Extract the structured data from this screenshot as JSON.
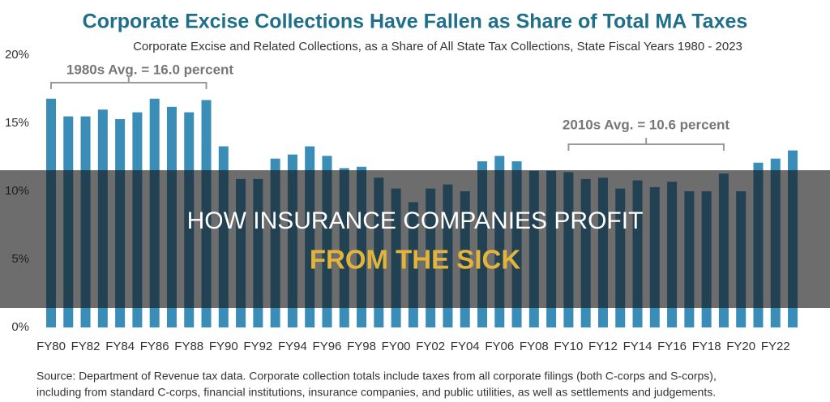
{
  "chart_data": {
    "type": "bar",
    "title": "Corporate Excise Collections Have Fallen as Share of Total MA Taxes",
    "subtitle": "Corporate Excise and Related Collections, as a Share of All State Tax Collections, State Fiscal Years 1980 - 2023",
    "categories": [
      "FY80",
      null,
      "FY82",
      null,
      "FY84",
      null,
      "FY86",
      null,
      "FY88",
      null,
      "FY90",
      null,
      "FY92",
      null,
      "FY94",
      null,
      "FY96",
      null,
      "FY98",
      null,
      "FY00",
      null,
      "FY02",
      null,
      "FY04",
      null,
      "FY06",
      null,
      "FY08",
      null,
      "FY10",
      null,
      "FY12",
      null,
      "FY14",
      null,
      "FY16",
      null,
      "FY18",
      null,
      "FY20",
      null,
      "FY22",
      null
    ],
    "values": [
      16.8,
      15.5,
      15.5,
      16.0,
      15.3,
      15.8,
      16.8,
      16.2,
      15.8,
      16.7,
      13.3,
      10.9,
      10.9,
      12.4,
      12.7,
      13.3,
      12.6,
      11.7,
      11.8,
      11.0,
      10.2,
      9.2,
      10.2,
      10.5,
      10.0,
      12.2,
      12.6,
      12.2,
      11.5,
      11.5,
      11.4,
      10.9,
      11.0,
      10.2,
      10.8,
      10.3,
      10.7,
      10.0,
      10.0,
      11.3,
      10.0,
      12.1,
      12.4,
      13.0
    ],
    "color": "#3a8db7",
    "ylim": [
      0,
      20
    ],
    "yticks": [
      {
        "value": 0,
        "label": "0%"
      },
      {
        "value": 5,
        "label": "5%"
      },
      {
        "value": 10,
        "label": "10%"
      },
      {
        "value": 15,
        "label": "15%"
      },
      {
        "value": 20,
        "label": "20%"
      }
    ],
    "grid": false,
    "annotations": [
      "1980s Avg. = 16.0 percent",
      "2010s Avg. = 10.6 percent"
    ],
    "source": [
      "Source: Department of Revenue tax data. Corporate collection totals include taxes from all corporate filings (both C-corps and S-corps),",
      "including from standard C-corps, financial institutions, insurance companies, and public utilities, as well as settlements and judgements."
    ]
  },
  "overlay": {
    "line1": "HOW INSURANCE COMPANIES PROFIT",
    "line2": "FROM THE SICK"
  }
}
